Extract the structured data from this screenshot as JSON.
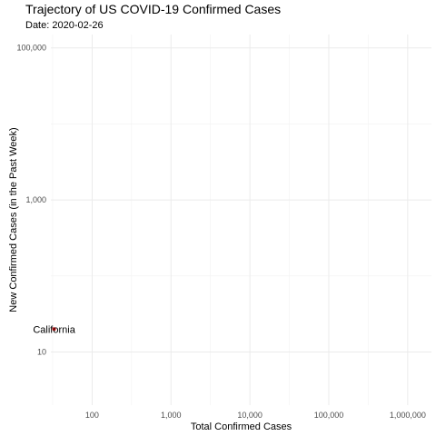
{
  "header": {
    "title": "Trajectory of US COVID-19 Confirmed Cases",
    "subtitle": "Date: 2020-02-26"
  },
  "chart_data": {
    "type": "scatter",
    "title": "Trajectory of US COVID-19 Confirmed Cases",
    "subtitle": "Date: 2020-02-26",
    "xlabel": "Total Confirmed Cases",
    "ylabel": "New Confirmed Cases (in the Past Week)",
    "x_scale": "log10",
    "y_scale": "log10",
    "xlim": [
      30,
      2000000
    ],
    "ylim": [
      2,
      150000
    ],
    "x_ticks": [
      {
        "value": 100,
        "label": "100"
      },
      {
        "value": 1000,
        "label": "1,000"
      },
      {
        "value": 10000,
        "label": "10,000"
      },
      {
        "value": 100000,
        "label": "100,000"
      },
      {
        "value": 1000000,
        "label": "1,000,000"
      }
    ],
    "x_minor_ticks": [
      31.6,
      316,
      3160,
      31600,
      316000
    ],
    "y_ticks": [
      {
        "value": 10,
        "label": "10"
      },
      {
        "value": 1000,
        "label": "1,000"
      },
      {
        "value": 100000,
        "label": "100,000"
      }
    ],
    "y_minor_ticks": [
      1,
      100,
      10000
    ],
    "grid": true,
    "points": [
      {
        "label": "California",
        "x": 33,
        "y": 20,
        "color": "#e41a1c"
      }
    ]
  }
}
